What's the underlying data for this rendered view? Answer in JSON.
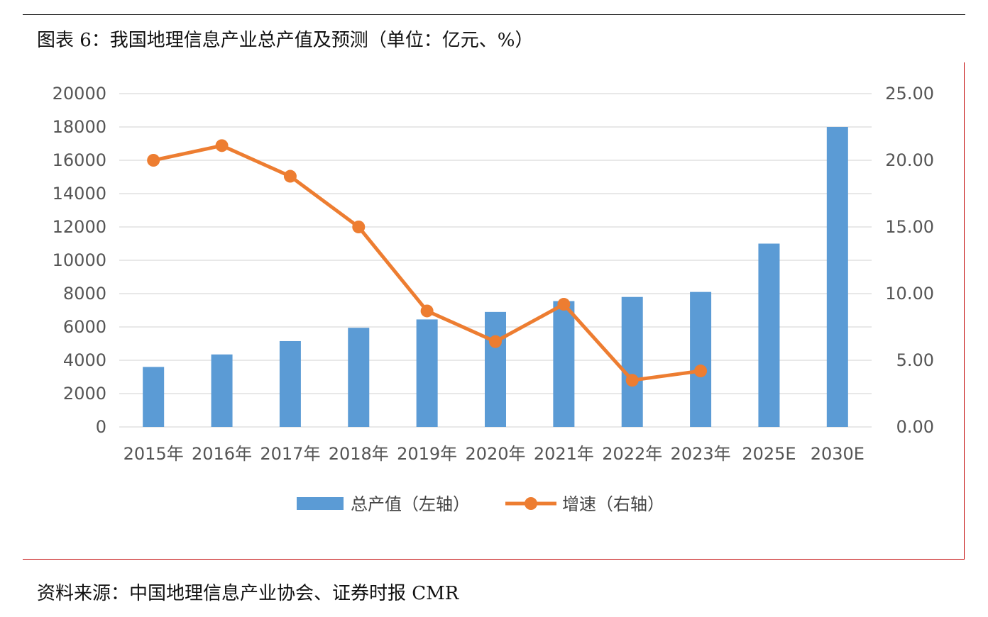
{
  "figure_title": "图表 6：我国地理信息产业总产值及预测（单位：亿元、%）",
  "source_note": "资料来源：中国地理信息产业协会、证券时报 CMR",
  "colors": {
    "bar": "#5b9bd5",
    "line": "#ed7d31",
    "grid": "#d9d9d9",
    "frame": "#c00000"
  },
  "chart_data": {
    "type": "bar",
    "categories": [
      "2015年",
      "2016年",
      "2017年",
      "2018年",
      "2019年",
      "2020年",
      "2021年",
      "2022年",
      "2023年",
      "2025E",
      "2030E"
    ],
    "series": [
      {
        "name": "总产值（左轴）",
        "type": "bar",
        "axis": "left",
        "values": [
          3600,
          4350,
          5150,
          5950,
          6450,
          6900,
          7550,
          7800,
          8100,
          11000,
          18000
        ]
      },
      {
        "name": "增速（右轴）",
        "type": "line",
        "axis": "right",
        "values": [
          20.0,
          21.1,
          18.8,
          15.0,
          8.7,
          6.4,
          9.2,
          3.5,
          4.2,
          null,
          null
        ]
      }
    ],
    "y_left": {
      "ylim": [
        0,
        20000
      ],
      "ticks": [
        "0",
        "2000",
        "4000",
        "6000",
        "8000",
        "10000",
        "12000",
        "14000",
        "16000",
        "18000",
        "20000"
      ]
    },
    "y_right": {
      "ylim": [
        0,
        25
      ],
      "ticks": [
        "0.00",
        "5.00",
        "10.00",
        "15.00",
        "20.00",
        "25.00"
      ]
    },
    "grid": true,
    "legend_position": "bottom"
  }
}
